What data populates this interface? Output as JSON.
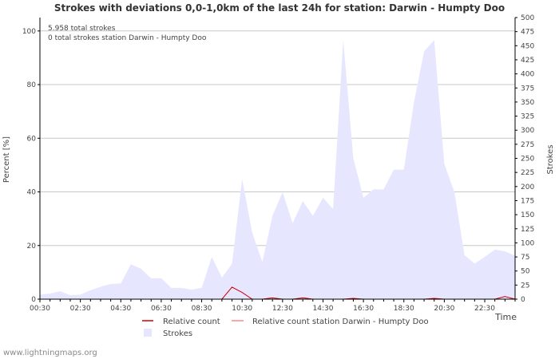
{
  "chart_data": {
    "type": "area",
    "title": "Strokes with deviations 0,0-1,0km of the last 24h for station: Darwin - Humpty Doo",
    "annotations": [
      "5.958 total strokes",
      "0 total strokes station Darwin - Humpty Doo"
    ],
    "xlabel": "Time",
    "ylabel_left": "Percent   [%]",
    "ylabel_right": "Strokes",
    "ylim_left": [
      0,
      105
    ],
    "ylim_right": [
      0,
      500
    ],
    "yticks_left": [
      "0",
      "20",
      "40",
      "60",
      "80",
      "100"
    ],
    "yticks_right": [
      "0",
      "25",
      "50",
      "75",
      "100",
      "125",
      "150",
      "175",
      "200",
      "225",
      "250",
      "275",
      "300",
      "325",
      "350",
      "375",
      "400",
      "425",
      "450",
      "475",
      "500"
    ],
    "xticks": [
      "00:30",
      "02:30",
      "04:30",
      "06:30",
      "08:30",
      "10:30",
      "12:30",
      "14:30",
      "16:30",
      "18:30",
      "20:30",
      "22:30"
    ],
    "x_hours": [
      0.0,
      0.5,
      1.0,
      1.5,
      2.0,
      2.5,
      3.0,
      3.5,
      4.0,
      4.5,
      5.0,
      5.5,
      6.0,
      6.5,
      7.0,
      7.5,
      8.0,
      8.5,
      9.0,
      9.5,
      10.0,
      10.5,
      11.0,
      11.5,
      12.0,
      12.5,
      13.0,
      13.5,
      14.0,
      14.5,
      15.0,
      15.5,
      16.0,
      16.5,
      17.0,
      17.5,
      18.0,
      18.5,
      19.0,
      19.5,
      20.0,
      20.5,
      21.0,
      21.5,
      22.0,
      22.5,
      23.0,
      23.5
    ],
    "series": [
      {
        "name": "Strokes",
        "axis": "right",
        "color": "#e6e6ff",
        "values": [
          8,
          10,
          14,
          7,
          8,
          16,
          22,
          27,
          28,
          62,
          54,
          37,
          37,
          20,
          20,
          17,
          20,
          75,
          38,
          63,
          213,
          118,
          66,
          148,
          190,
          135,
          174,
          148,
          180,
          160,
          460,
          250,
          180,
          195,
          195,
          230,
          230,
          350,
          440,
          460,
          240,
          190,
          78,
          63,
          75,
          88,
          85,
          77
        ]
      },
      {
        "name": "Relative count",
        "axis": "left",
        "color": "#cc0000",
        "values": [
          0,
          0,
          0,
          0,
          0,
          0,
          0,
          0,
          0,
          0,
          0,
          0,
          0,
          0,
          0,
          0,
          0,
          0,
          0,
          4.5,
          2.5,
          0,
          0,
          0.5,
          0,
          0,
          0.5,
          0,
          0,
          0,
          0,
          0.3,
          0,
          0,
          0,
          0,
          0,
          0,
          0,
          0.3,
          0,
          0,
          0,
          0,
          0,
          0,
          1.0,
          0
        ]
      },
      {
        "name": "Relative count station Darwin - Humpty Doo",
        "axis": "left",
        "color": "#ff8888",
        "values": []
      }
    ],
    "legend": [
      "Relative count",
      "Relative count station Darwin - Humpty Doo",
      "Strokes"
    ]
  },
  "credit": "www.lightningmaps.org"
}
